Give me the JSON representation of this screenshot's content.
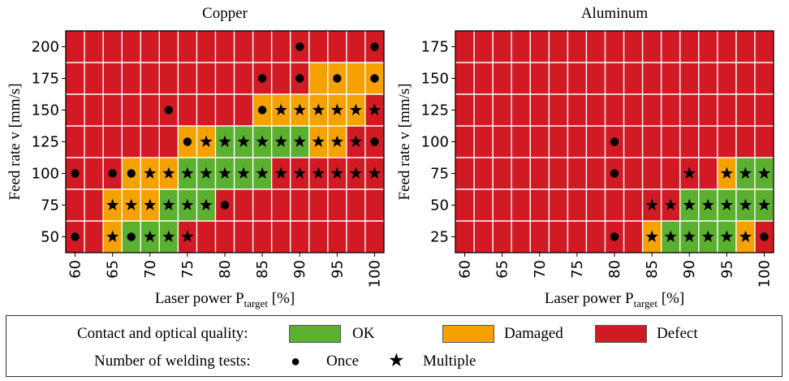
{
  "colors": {
    "ok": "#5CB030",
    "damaged": "#F5A200",
    "defect": "#D11A24",
    "grid": "#ffffff",
    "marker": "#000000"
  },
  "chart_data": [
    {
      "type": "heatmap",
      "title": "Copper",
      "xlabel": "Laser power P",
      "xlabel_sub": "target",
      "xlabel_unit": "[%]",
      "ylabel": "Feed rate v [mm/s]",
      "x_ticks": [
        "60",
        "65",
        "70",
        "75",
        "80",
        "85",
        "90",
        "95",
        "100"
      ],
      "y_ticks": [
        "50",
        "75",
        "100",
        "125",
        "150",
        "175",
        "200"
      ],
      "x_values": [
        60,
        62.5,
        65,
        67.5,
        70,
        72.5,
        75,
        77.5,
        80,
        82.5,
        85,
        87.5,
        90,
        92.5,
        95,
        97.5,
        100
      ],
      "y_values": [
        50,
        75,
        100,
        125,
        150,
        175,
        200
      ],
      "quality": {
        "200": "DDDDDDDDDDDDDDDDD",
        "175": "DDDDDDDDDDDDDYYYY",
        "150": "DDDDDDDDDDYYYYYYD",
        "125": "DDDDDDYYGGGGGYYDD",
        "100": "DDDYYYGGGGGDDDDDD",
        "75": "DDYYYGGGDDDDDDDDD",
        "50": "DDYGGGDDDDDDDDDDD"
      },
      "tests": {
        "200": "............o...o",
        "175": "..........o.o.o.o",
        "150": ".....o....o******",
        "125": "......o*********o",
        "100": "o.oo*************",
        "75": "..******o........",
        "50": "o.*o***.........."
      }
    },
    {
      "type": "heatmap",
      "title": "Aluminum",
      "xlabel": "Laser power P",
      "xlabel_sub": "target",
      "xlabel_unit": "[%]",
      "ylabel": "Feed rate v [mm/s]",
      "x_ticks": [
        "60",
        "65",
        "70",
        "75",
        "80",
        "85",
        "90",
        "95",
        "100"
      ],
      "y_ticks": [
        "25",
        "50",
        "75",
        "100",
        "125",
        "150",
        "175"
      ],
      "x_values": [
        60,
        62.5,
        65,
        67.5,
        70,
        72.5,
        75,
        77.5,
        80,
        82.5,
        85,
        87.5,
        90,
        92.5,
        95,
        97.5,
        100
      ],
      "y_values": [
        25,
        50,
        75,
        100,
        125,
        150,
        175
      ],
      "quality": {
        "175": "DDDDDDDDDDDDDDDDD",
        "150": "DDDDDDDDDDDDDDDDD",
        "125": "DDDDDDDDDDDDDDDDD",
        "100": "DDDDDDDDDDDDDDDDD",
        "75": "DDDDDDDDDDDDDDYGG",
        "50": "DDDDDDDDDDDDGGGGG",
        "25": "DDDDDDDDDDYGGGGYD"
      },
      "tests": {
        "175": ".................",
        "150": ".................",
        "125": ".................",
        "100": "........o........",
        "75": "........o...*.***",
        "50": "..........*******",
        "25": "........o.******o"
      }
    }
  ],
  "legend": {
    "quality_label": "Contact and optical quality:",
    "ok_label": "OK",
    "damaged_label": "Damaged",
    "defect_label": "Defect",
    "tests_label": "Number of welding tests:",
    "once_label": "Once",
    "multiple_label": "Multiple",
    "once_symbol": "●",
    "multiple_symbol": "★"
  }
}
